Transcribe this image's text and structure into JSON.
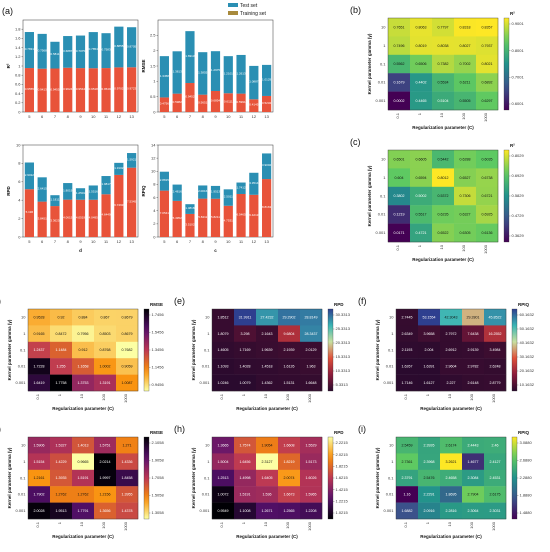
{
  "panels": {
    "bars": [
      {
        "label": "(a)",
        "ylabel": "R²",
        "xlabel": "",
        "ylim": [
          0,
          2.0
        ],
        "yticks": [
          0,
          0.2,
          0.4,
          0.6,
          0.8,
          1.0,
          1.2,
          1.4,
          1.6,
          1.8
        ],
        "categories": [
          "5",
          "6",
          "7",
          "8",
          "9",
          "10",
          "11",
          "12",
          "13"
        ],
        "series": [
          {
            "name": "Training set",
            "values": [
              0.9555,
              0.9413,
              0.9455,
              0.9624,
              0.9544,
              0.9518,
              0.9549,
              0.9702,
              0.9723
            ]
          },
          {
            "name": "Test set",
            "values": [
              0.7831,
              0.7568,
              0.5811,
              0.6887,
              0.7075,
              0.7854,
              0.7583,
              0.8855,
              0.8705
            ]
          }
        ]
      },
      {
        "label": "",
        "ylabel": "RMSE",
        "xlabel": "",
        "ylim": [
          0,
          3.0
        ],
        "yticks": [
          0,
          0.5,
          1.0,
          1.5,
          2.0,
          2.5
        ],
        "categories": [
          "5",
          "6",
          "7",
          "8",
          "9",
          "10",
          "11",
          "12",
          "13"
        ],
        "series": [
          {
            "name": "Training set",
            "values": [
              0.4756,
              0.5982,
              0.9452,
              0.5651,
              0.6854,
              0.6111,
              0.5991,
              0.4145,
              0.5232
            ]
          },
          {
            "name": "Test set",
            "values": [
              1.3458,
              1.3813,
              1.6913,
              1.3855,
              1.2975,
              1.2101,
              1.2613,
              1.0887,
              1.0129
            ]
          }
        ]
      },
      {
        "label": "",
        "ylabel": "RPD",
        "xlabel": "d",
        "ylim": [
          0,
          10
        ],
        "yticks": [
          0,
          2,
          4,
          6,
          8,
          10
        ],
        "categories": [
          "5",
          "6",
          "7",
          "8",
          "9",
          "10",
          "11",
          "12",
          "13"
        ],
        "series": [
          {
            "name": "Training set",
            "values": [
              5.196,
              3.8451,
              3.3625,
              4.0615,
              4.0519,
              4.0495,
              4.6449,
              6.7493,
              7.5345
            ]
          },
          {
            "name": "Test set",
            "values": [
              2.9012,
              2.6415,
              1.1811,
              1.8019,
              1.2501,
              1.5516,
              1.9817,
              1.3102,
              1.5921
            ]
          }
        ]
      },
      {
        "label": "",
        "ylabel": "RPIQ",
        "xlabel": "c",
        "ylim": [
          0,
          14
        ],
        "yticks": [
          0,
          2,
          4,
          6,
          8,
          10,
          12,
          14
        ],
        "categories": [
          "5",
          "6",
          "7",
          "8",
          "9",
          "10",
          "11",
          "12",
          "13"
        ],
        "series": [
          {
            "name": "Training set",
            "values": [
              7.0541,
              5.4952,
              3.5102,
              5.8411,
              5.8211,
              4.7531,
              6.5465,
              6.4213,
              8.8163
            ]
          },
          {
            "name": "Test set",
            "values": [
              2.8815,
              2.4816,
              1.4818,
              2.0016,
              1.9513,
              2.5011,
              1.7412,
              3.3514,
              3.9002
            ]
          }
        ]
      }
    ],
    "heatmaps": [
      {
        "label": "(b)",
        "title": "R²",
        "cmap": "viridis",
        "xlabel": "Regularization parameter (C)",
        "ylabel": "Kernel parameter gamma (γ)",
        "xticks": [
          "0.1",
          "1",
          "10",
          "100",
          "1000"
        ],
        "yticks": [
          "10",
          "1",
          "0.1",
          "0.01",
          "0.001"
        ],
        "colorbar_ticks": [
          "0.9001",
          "0.8001",
          "0.7001",
          "0.6001"
        ],
        "values": [
          [
            0.7651,
            0.8063,
            0.7797,
            0.8318,
            0.8357
          ],
          [
            0.7496,
            0.8019,
            0.8038,
            0.8027,
            0.7937
          ],
          [
            0.5562,
            0.6506,
            0.7382,
            0.7002,
            0.8021
          ],
          [
            0.1679,
            0.4402,
            0.5534,
            0.6211,
            0.6892
          ],
          [
            0.0002,
            0.4465,
            0.5104,
            0.5505,
            0.6297
          ]
        ]
      },
      {
        "label": "(c)",
        "title": "R²",
        "cmap": "viridis",
        "xlabel": "Regularization parameter (C)",
        "ylabel": "Kernel parameter gamma (γ)",
        "xticks": [
          "0.1",
          "1",
          "10",
          "100",
          "1000"
        ],
        "yticks": [
          "10",
          "1",
          "0.1",
          "0.01",
          "0.001"
        ],
        "colorbar_ticks": [
          "0.8029",
          "0.6929",
          "0.5829",
          "0.4729",
          "0.3629"
        ],
        "values": [
          [
            0.6501,
            0.6605,
            0.5442,
            0.6288,
            0.6035
          ],
          [
            0.604,
            0.6594,
            0.8012,
            0.6527,
            0.6738
          ],
          [
            0.3802,
            0.5002,
            0.5372,
            0.7306,
            0.6721
          ],
          [
            0.1219,
            0.5517,
            0.6235,
            0.6327,
            0.6925
          ],
          [
            0.0171,
            0.4721,
            0.6522,
            0.6305,
            0.6136
          ]
        ]
      },
      {
        "label": "(d)",
        "title": "RMSE",
        "cmap": "inferno_r",
        "xlabel": "Regularization parameter (C)",
        "ylabel": "Kernel parameter gamma (γ)",
        "xticks": [
          "0.1",
          "1",
          "10",
          "100",
          "1000"
        ],
        "yticks": [
          "10",
          "1",
          "0.1",
          "0.01",
          "0.001"
        ],
        "colorbar_ticks": [
          "1.7456",
          "1.5456",
          "1.3456",
          "1.1456",
          "0.9456"
        ],
        "values": [
          [
            0.9528,
            0.92,
            0.884,
            0.867,
            0.8679
          ],
          [
            0.9165,
            0.8472,
            0.7956,
            0.8503,
            0.8679
          ],
          [
            1.2437,
            1.1484,
            0.912,
            0.8768,
            0.7682
          ],
          [
            1.7228,
            1.255,
            1.1658,
            1.0002,
            0.9059
          ],
          [
            1.6419,
            1.7758,
            1.3753,
            1.3191,
            1.0087
          ]
        ]
      },
      {
        "label": "(e)",
        "title": "RPD",
        "cmap": "viridis_inferno",
        "xlabel": "Regularization parameter (C)",
        "ylabel": "Kernel parameter gamma (γ)",
        "xticks": [
          "0.1",
          "1",
          "10",
          "100",
          "1000"
        ],
        "yticks": [
          "10",
          "1",
          "0.1",
          "0.01",
          "0.001"
        ],
        "colorbar_ticks": [
          "30.3313",
          "25.3313",
          "20.3313",
          "15.3313",
          "10.3313",
          "5.3313"
        ],
        "values": [
          [
            1.8512,
            31.9911,
            27.4232,
            29.2902,
            28.8149
          ],
          [
            1.8079,
            3.298,
            2.1643,
            9.6804,
            28.3437
          ],
          [
            1.4605,
            1.7169,
            1.9639,
            2.1939,
            2.0129
          ],
          [
            1.1093,
            1.4028,
            1.4518,
            1.6126,
            1.963
          ],
          [
            1.0246,
            1.0079,
            1.4362,
            1.5131,
            1.6648
          ]
        ]
      },
      {
        "label": "(f)",
        "title": "RPIQ",
        "cmap": "viridis_inferno",
        "xlabel": "Regularization parameter (C)",
        "ylabel": "Kernel parameter gamma (γ)",
        "xticks": [
          "0.1",
          "1",
          "10",
          "100",
          "1000"
        ],
        "yticks": [
          "10",
          "1",
          "0.1",
          "0.01",
          "0.001"
        ],
        "colorbar_ticks": [
          "60.1632",
          "50.1632",
          "40.1632",
          "30.1632",
          "20.1632",
          "10.1632"
        ],
        "values": [
          [
            2.7445,
            53.1554,
            42.3043,
            29.2801,
            45.8522
          ],
          [
            2.6349,
            3.9658,
            2.7972,
            7.6438,
            16.2552
          ],
          [
            2.1193,
            2.004,
            2.6912,
            2.9139,
            3.4984
          ],
          [
            1.6267,
            1.6391,
            2.9604,
            2.9782,
            2.6248
          ],
          [
            1.7146,
            1.6127,
            2.227,
            2.6148,
            2.8779
          ]
        ]
      },
      {
        "label": "(g)",
        "title": "RMSE",
        "cmap": "inferno_r",
        "xlabel": "Regularization parameter (C)",
        "ylabel": "Kernel parameter gamma (γ)",
        "xticks": [
          "0.1",
          "1",
          "10",
          "100",
          "1000"
        ],
        "yticks": [
          "10",
          "1",
          "0.1",
          "0.01",
          "0.001"
        ],
        "colorbar_ticks": [
          "2.1058",
          "1.9058",
          "1.7058",
          "1.5058",
          "1.3058"
        ],
        "values": [
          [
            1.5906,
            1.5327,
            1.4013,
            1.5751,
            1.271
          ],
          [
            1.5154,
            1.4229,
            0.9665,
            2.0214,
            1.4336
          ],
          [
            1.2161,
            1.3935,
            1.5191,
            1.9997,
            1.8458
          ],
          [
            1.7902,
            1.2762,
            1.2762,
            1.2156,
            1.3955
          ],
          [
            2.0028,
            1.9513,
            1.7791,
            1.3656,
            1.4378
          ]
        ]
      },
      {
        "label": "(h)",
        "title": "RPD",
        "cmap": "inferno",
        "xlabel": "Regularization parameter (C)",
        "ylabel": "Kernel parameter gamma (γ)",
        "xticks": [
          "0.1",
          "1",
          "10",
          "100",
          "1000"
        ],
        "yticks": [
          "10",
          "1",
          "0.1",
          "0.01",
          "0.001"
        ],
        "colorbar_ticks": [
          "2.2215",
          "2.0215",
          "1.8215",
          "1.6215",
          "1.4215",
          "1.2215",
          "1.0215"
        ],
        "values": [
          [
            1.3665,
            1.7574,
            1.9054,
            1.6608,
            1.5529
          ],
          [
            1.5004,
            1.6456,
            2.3127,
            1.8219,
            1.5173
          ],
          [
            1.2513,
            1.4998,
            1.6405,
            2.0074,
            1.6026
          ],
          [
            1.0072,
            1.5191,
            1.536,
            1.6673,
            1.5965
          ],
          [
            0.9549,
            1.1008,
            1.2671,
            1.2565,
            1.2208
          ]
        ]
      },
      {
        "label": "(i)",
        "title": "RPIQ",
        "cmap": "viridis",
        "xlabel": "Regularization parameter (C)",
        "ylabel": "Kernel parameter gamma (γ)",
        "xticks": [
          "0.1",
          "1",
          "10",
          "100",
          "1000"
        ],
        "yticks": [
          "10",
          "1",
          "0.1",
          "0.01",
          "0.001"
        ],
        "colorbar_ticks": [
          "3.0880",
          "2.6880",
          "2.2880",
          "1.8880",
          "1.4880"
        ],
        "values": [
          [
            2.5459,
            2.3926,
            2.6174,
            2.4443,
            2.46
          ],
          [
            2.7361,
            2.3968,
            3.2621,
            1.4677,
            2.4127
          ],
          [
            2.3791,
            2.5476,
            2.4658,
            2.3084,
            2.4531
          ],
          [
            1.16,
            2.2291,
            1.8695,
            2.7904,
            2.6175
          ],
          [
            1.6882,
            2.0916,
            2.2816,
            2.3064,
            2.3031
          ]
        ]
      }
    ]
  },
  "legend": {
    "test_label": "Test set",
    "train_label": "Training set"
  },
  "colors": {
    "test": "#2a8fb3",
    "train": "#e8533a"
  }
}
